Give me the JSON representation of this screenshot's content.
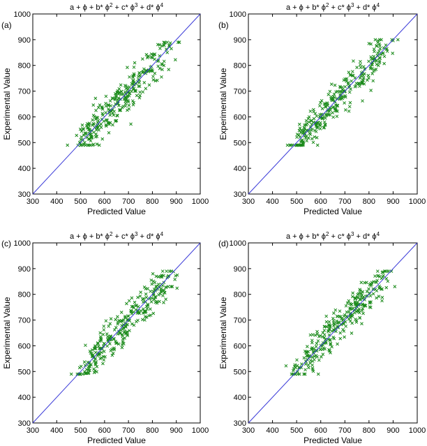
{
  "colors": {
    "points": "#1a8a1a",
    "reference_line": "#3a3ad8",
    "axes": "#000000"
  },
  "chart_data": [
    {
      "type": "scatter",
      "panel_label": "(a)",
      "title_parts": [
        "a + ",
        "ϕ",
        " + b* ",
        "ϕ",
        "2",
        " + c* ",
        "ϕ",
        "3",
        " + d* ",
        "ϕ",
        "4"
      ],
      "xlabel": "Predicted Value",
      "ylabel": "Experimental Value",
      "xlim": [
        300,
        1000
      ],
      "ylim": [
        300,
        1000
      ],
      "xticks": [
        "300",
        "400",
        "500",
        "600",
        "700",
        "800",
        "900",
        "1000"
      ],
      "yticks": [
        "300",
        "400",
        "500",
        "600",
        "700",
        "800",
        "900",
        "1000"
      ],
      "grid": false,
      "reference_line": {
        "from": [
          300,
          300
        ],
        "to": [
          1000,
          1000
        ]
      },
      "marker": "x",
      "point_summary": {
        "count": 300,
        "x_range": [
          445,
          920
        ],
        "y_range": [
          490,
          890
        ],
        "trend": "clustered around the y = x line"
      }
    },
    {
      "type": "scatter",
      "panel_label": "(b)",
      "title_parts": [
        "a + ",
        "ϕ",
        " + b* ",
        "ϕ",
        "2",
        " + c* ",
        "ϕ",
        "3",
        " + d* ",
        "ϕ",
        "4"
      ],
      "xlabel": "Predicted Value",
      "ylabel": "Experimental Value",
      "xlim": [
        300,
        1000
      ],
      "ylim": [
        300,
        1000
      ],
      "xticks": [
        "300",
        "400",
        "500",
        "600",
        "700",
        "800",
        "900",
        "1000"
      ],
      "yticks": [
        "300",
        "400",
        "500",
        "600",
        "700",
        "800",
        "900",
        "1000"
      ],
      "grid": false,
      "reference_line": {
        "from": [
          300,
          300
        ],
        "to": [
          1000,
          1000
        ]
      },
      "marker": "x",
      "point_summary": {
        "count": 300,
        "x_range": [
          455,
          920
        ],
        "y_range": [
          490,
          900
        ],
        "trend": "clustered around the y = x line"
      }
    },
    {
      "type": "scatter",
      "panel_label": "(c)",
      "title_parts": [
        "a + ",
        "ϕ",
        " + b* ",
        "ϕ",
        "2",
        " + c* ",
        "ϕ",
        "3",
        " + d* ",
        "ϕ",
        "4"
      ],
      "xlabel": "Predicted Value",
      "ylabel": "Experimental Value",
      "xlim": [
        300,
        1000
      ],
      "ylim": [
        300,
        1000
      ],
      "xticks": [
        "300",
        "400",
        "500",
        "600",
        "700",
        "800",
        "900",
        "1000"
      ],
      "yticks": [
        "300",
        "400",
        "500",
        "600",
        "700",
        "800",
        "900",
        "1000"
      ],
      "grid": false,
      "reference_line": {
        "from": [
          300,
          300
        ],
        "to": [
          1000,
          1000
        ]
      },
      "marker": "x",
      "point_summary": {
        "count": 300,
        "x_range": [
          450,
          920
        ],
        "y_range": [
          490,
          890
        ],
        "trend": "clustered around the y = x line"
      }
    },
    {
      "type": "scatter",
      "panel_label": "(d)",
      "title_parts": [
        "a + ",
        "ϕ",
        " + b* ",
        "ϕ",
        "2",
        " + c* ",
        "ϕ",
        "3",
        " + d* ",
        "ϕ",
        "4"
      ],
      "xlabel": "Predicted Value",
      "ylabel": "Experimental Value",
      "xlim": [
        300,
        1000
      ],
      "ylim": [
        300,
        1000
      ],
      "xticks": [
        "300",
        "400",
        "500",
        "600",
        "700",
        "800",
        "900",
        "1000"
      ],
      "yticks": [
        "300",
        "400",
        "500",
        "600",
        "700",
        "800",
        "900",
        "1000"
      ],
      "grid": false,
      "reference_line": {
        "from": [
          300,
          300
        ],
        "to": [
          1000,
          1000
        ]
      },
      "marker": "x",
      "point_summary": {
        "count": 300,
        "x_range": [
          450,
          920
        ],
        "y_range": [
          490,
          890
        ],
        "trend": "clustered around the y = x line"
      }
    }
  ]
}
